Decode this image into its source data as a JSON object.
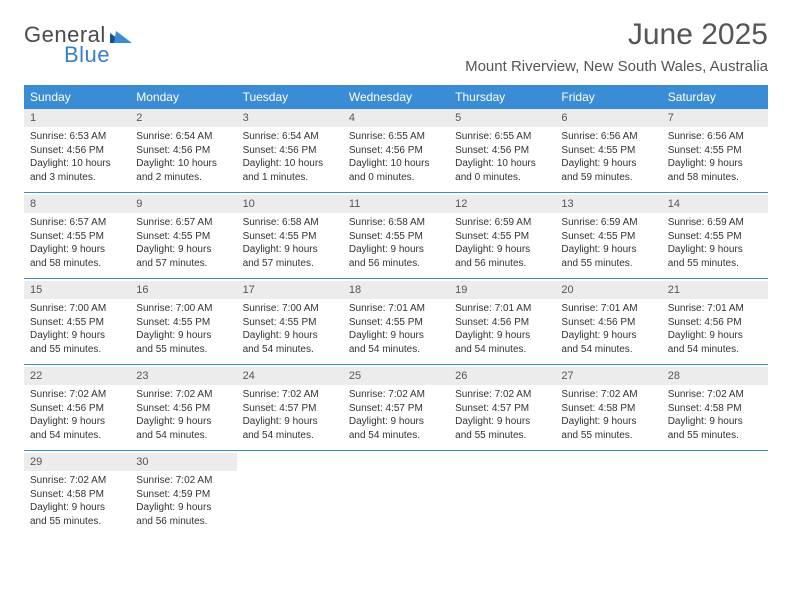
{
  "colors": {
    "header_bar": "#3a8dd4",
    "header_text": "#ffffff",
    "daynum_bg": "#ececec",
    "rule": "#3a8dd4",
    "body_text": "#333333",
    "title_text": "#555555",
    "logo_gray": "#4a4a4a",
    "logo_blue": "#3a7fc4",
    "page_bg": "#ffffff"
  },
  "logo": {
    "word1": "General",
    "word2": "Blue"
  },
  "title": "June 2025",
  "subtitle": "Mount Riverview, New South Wales, Australia",
  "dow": [
    "Sunday",
    "Monday",
    "Tuesday",
    "Wednesday",
    "Thursday",
    "Friday",
    "Saturday"
  ],
  "layout": {
    "grid_cols": 7,
    "fontsizes": {
      "title": 30,
      "subtitle": 15,
      "dow": 12,
      "daynum": 11,
      "body": 10
    }
  },
  "weeks": [
    [
      {
        "n": "1",
        "sr": "Sunrise: 6:53 AM",
        "ss": "Sunset: 4:56 PM",
        "d1": "Daylight: 10 hours",
        "d2": "and 3 minutes."
      },
      {
        "n": "2",
        "sr": "Sunrise: 6:54 AM",
        "ss": "Sunset: 4:56 PM",
        "d1": "Daylight: 10 hours",
        "d2": "and 2 minutes."
      },
      {
        "n": "3",
        "sr": "Sunrise: 6:54 AM",
        "ss": "Sunset: 4:56 PM",
        "d1": "Daylight: 10 hours",
        "d2": "and 1 minutes."
      },
      {
        "n": "4",
        "sr": "Sunrise: 6:55 AM",
        "ss": "Sunset: 4:56 PM",
        "d1": "Daylight: 10 hours",
        "d2": "and 0 minutes."
      },
      {
        "n": "5",
        "sr": "Sunrise: 6:55 AM",
        "ss": "Sunset: 4:56 PM",
        "d1": "Daylight: 10 hours",
        "d2": "and 0 minutes."
      },
      {
        "n": "6",
        "sr": "Sunrise: 6:56 AM",
        "ss": "Sunset: 4:55 PM",
        "d1": "Daylight: 9 hours",
        "d2": "and 59 minutes."
      },
      {
        "n": "7",
        "sr": "Sunrise: 6:56 AM",
        "ss": "Sunset: 4:55 PM",
        "d1": "Daylight: 9 hours",
        "d2": "and 58 minutes."
      }
    ],
    [
      {
        "n": "8",
        "sr": "Sunrise: 6:57 AM",
        "ss": "Sunset: 4:55 PM",
        "d1": "Daylight: 9 hours",
        "d2": "and 58 minutes."
      },
      {
        "n": "9",
        "sr": "Sunrise: 6:57 AM",
        "ss": "Sunset: 4:55 PM",
        "d1": "Daylight: 9 hours",
        "d2": "and 57 minutes."
      },
      {
        "n": "10",
        "sr": "Sunrise: 6:58 AM",
        "ss": "Sunset: 4:55 PM",
        "d1": "Daylight: 9 hours",
        "d2": "and 57 minutes."
      },
      {
        "n": "11",
        "sr": "Sunrise: 6:58 AM",
        "ss": "Sunset: 4:55 PM",
        "d1": "Daylight: 9 hours",
        "d2": "and 56 minutes."
      },
      {
        "n": "12",
        "sr": "Sunrise: 6:59 AM",
        "ss": "Sunset: 4:55 PM",
        "d1": "Daylight: 9 hours",
        "d2": "and 56 minutes."
      },
      {
        "n": "13",
        "sr": "Sunrise: 6:59 AM",
        "ss": "Sunset: 4:55 PM",
        "d1": "Daylight: 9 hours",
        "d2": "and 55 minutes."
      },
      {
        "n": "14",
        "sr": "Sunrise: 6:59 AM",
        "ss": "Sunset: 4:55 PM",
        "d1": "Daylight: 9 hours",
        "d2": "and 55 minutes."
      }
    ],
    [
      {
        "n": "15",
        "sr": "Sunrise: 7:00 AM",
        "ss": "Sunset: 4:55 PM",
        "d1": "Daylight: 9 hours",
        "d2": "and 55 minutes."
      },
      {
        "n": "16",
        "sr": "Sunrise: 7:00 AM",
        "ss": "Sunset: 4:55 PM",
        "d1": "Daylight: 9 hours",
        "d2": "and 55 minutes."
      },
      {
        "n": "17",
        "sr": "Sunrise: 7:00 AM",
        "ss": "Sunset: 4:55 PM",
        "d1": "Daylight: 9 hours",
        "d2": "and 54 minutes."
      },
      {
        "n": "18",
        "sr": "Sunrise: 7:01 AM",
        "ss": "Sunset: 4:55 PM",
        "d1": "Daylight: 9 hours",
        "d2": "and 54 minutes."
      },
      {
        "n": "19",
        "sr": "Sunrise: 7:01 AM",
        "ss": "Sunset: 4:56 PM",
        "d1": "Daylight: 9 hours",
        "d2": "and 54 minutes."
      },
      {
        "n": "20",
        "sr": "Sunrise: 7:01 AM",
        "ss": "Sunset: 4:56 PM",
        "d1": "Daylight: 9 hours",
        "d2": "and 54 minutes."
      },
      {
        "n": "21",
        "sr": "Sunrise: 7:01 AM",
        "ss": "Sunset: 4:56 PM",
        "d1": "Daylight: 9 hours",
        "d2": "and 54 minutes."
      }
    ],
    [
      {
        "n": "22",
        "sr": "Sunrise: 7:02 AM",
        "ss": "Sunset: 4:56 PM",
        "d1": "Daylight: 9 hours",
        "d2": "and 54 minutes."
      },
      {
        "n": "23",
        "sr": "Sunrise: 7:02 AM",
        "ss": "Sunset: 4:56 PM",
        "d1": "Daylight: 9 hours",
        "d2": "and 54 minutes."
      },
      {
        "n": "24",
        "sr": "Sunrise: 7:02 AM",
        "ss": "Sunset: 4:57 PM",
        "d1": "Daylight: 9 hours",
        "d2": "and 54 minutes."
      },
      {
        "n": "25",
        "sr": "Sunrise: 7:02 AM",
        "ss": "Sunset: 4:57 PM",
        "d1": "Daylight: 9 hours",
        "d2": "and 54 minutes."
      },
      {
        "n": "26",
        "sr": "Sunrise: 7:02 AM",
        "ss": "Sunset: 4:57 PM",
        "d1": "Daylight: 9 hours",
        "d2": "and 55 minutes."
      },
      {
        "n": "27",
        "sr": "Sunrise: 7:02 AM",
        "ss": "Sunset: 4:58 PM",
        "d1": "Daylight: 9 hours",
        "d2": "and 55 minutes."
      },
      {
        "n": "28",
        "sr": "Sunrise: 7:02 AM",
        "ss": "Sunset: 4:58 PM",
        "d1": "Daylight: 9 hours",
        "d2": "and 55 minutes."
      }
    ],
    [
      {
        "n": "29",
        "sr": "Sunrise: 7:02 AM",
        "ss": "Sunset: 4:58 PM",
        "d1": "Daylight: 9 hours",
        "d2": "and 55 minutes."
      },
      {
        "n": "30",
        "sr": "Sunrise: 7:02 AM",
        "ss": "Sunset: 4:59 PM",
        "d1": "Daylight: 9 hours",
        "d2": "and 56 minutes."
      },
      {
        "empty": true
      },
      {
        "empty": true
      },
      {
        "empty": true
      },
      {
        "empty": true
      },
      {
        "empty": true
      }
    ]
  ]
}
